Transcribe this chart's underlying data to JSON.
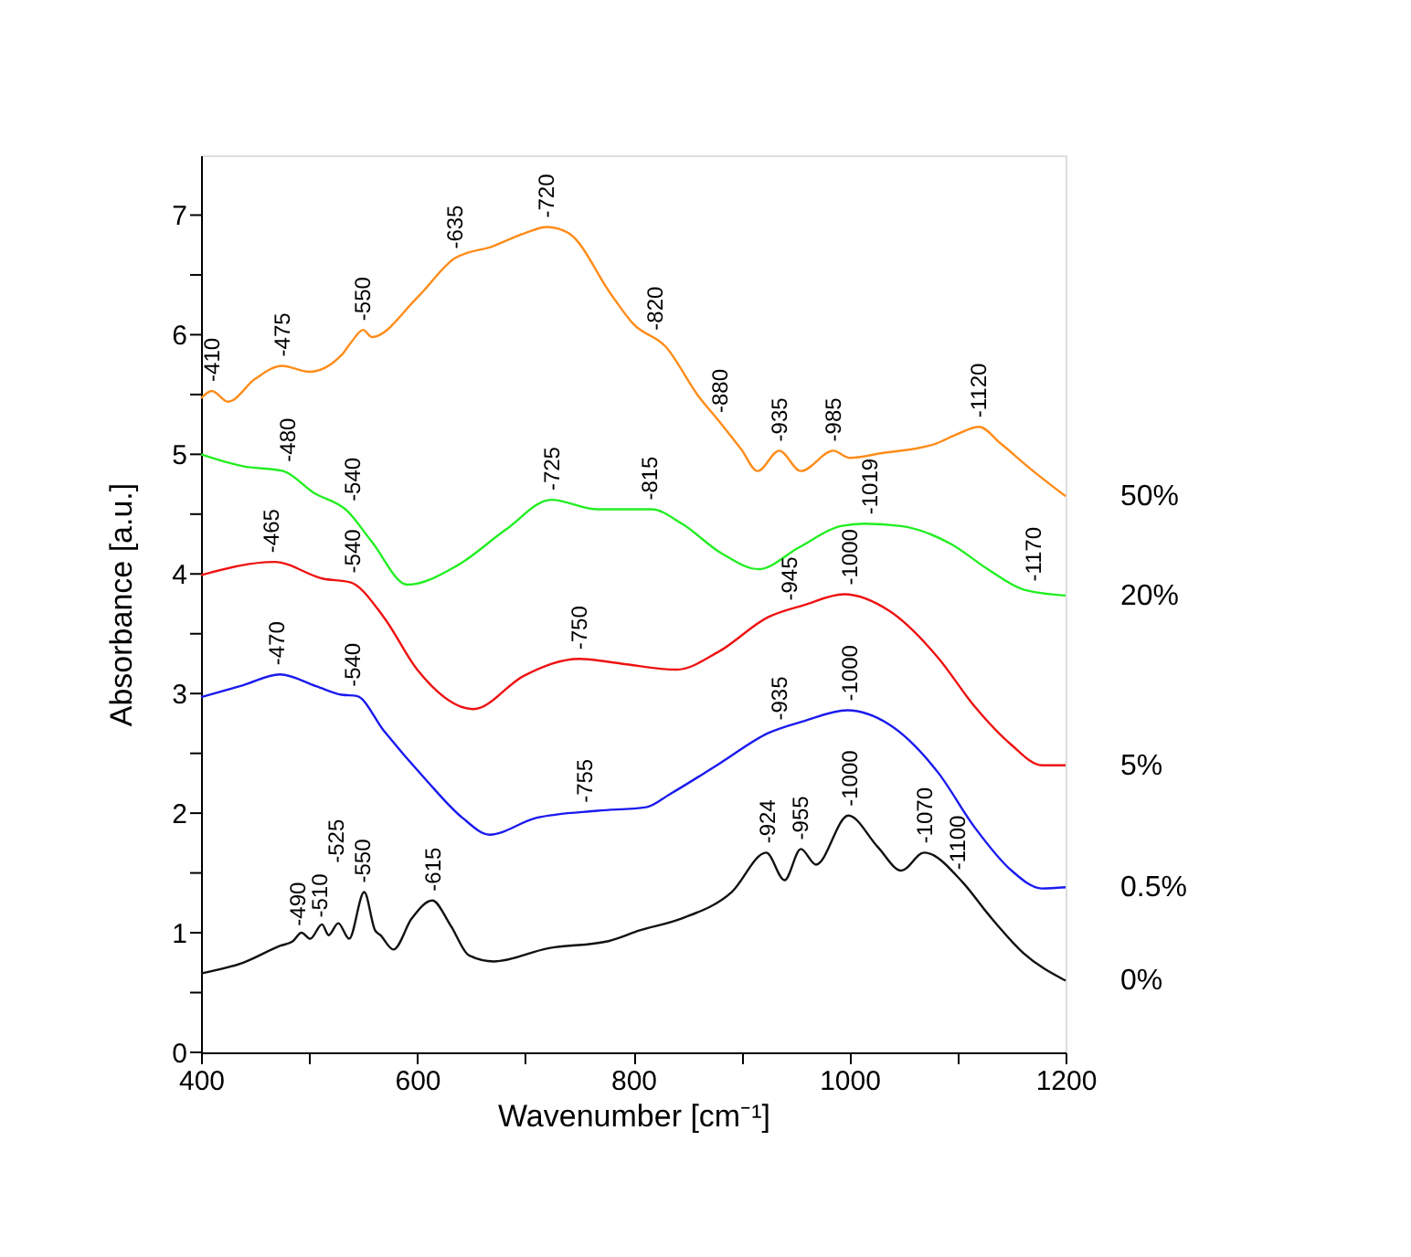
{
  "chart_data": {
    "type": "line",
    "xlabel": "Wavenumber [cm⁻¹]",
    "ylabel": "Absorbance [a.u.]",
    "xlim": [
      400,
      1200
    ],
    "ylim": [
      0,
      7.5
    ],
    "xticks": [
      400,
      {
        "value": 500,
        "label": null
      },
      600,
      {
        "value": 700,
        "label": null
      },
      800,
      {
        "value": 900,
        "label": null
      },
      1000,
      {
        "value": 1100,
        "label": null
      },
      1200
    ],
    "yticks": [
      0,
      {
        "value": 0.5,
        "label": null
      },
      1,
      {
        "value": 1.5,
        "label": null
      },
      2,
      {
        "value": 2.5,
        "label": null
      },
      3,
      {
        "value": 3.5,
        "label": null
      },
      4,
      {
        "value": 4.5,
        "label": null
      },
      5,
      {
        "value": 5.5,
        "label": null
      },
      6,
      {
        "value": 6.5,
        "label": null
      },
      7
    ],
    "grid": false,
    "series": [
      {
        "name": "50%",
        "color": "#ff8c1a",
        "x": [
          400,
          410,
          425,
          450,
          475,
          500,
          530,
          540,
          550,
          558,
          600,
          635,
          670,
          700,
          720,
          740,
          780,
          800,
          830,
          860,
          880,
          900,
          915,
          935,
          955,
          985,
          1000,
          1030,
          1080,
          1100,
          1120,
          1140,
          1170,
          1200
        ],
        "values": [
          5.47,
          5.53,
          5.44,
          5.63,
          5.74,
          5.69,
          5.83,
          5.95,
          6.04,
          5.98,
          6.31,
          6.64,
          6.74,
          6.85,
          6.9,
          6.85,
          6.33,
          6.09,
          5.9,
          5.49,
          5.27,
          5.04,
          4.86,
          5.03,
          4.86,
          5.03,
          4.97,
          5.01,
          5.09,
          5.17,
          5.23,
          5.09,
          4.86,
          4.65
        ]
      },
      {
        "name": "20%",
        "color": "#22ee22",
        "x": [
          400,
          439,
          476,
          504,
          535,
          558,
          591,
          637,
          682,
          724,
          767,
          817,
          845,
          882,
          916,
          953,
          992,
          1014,
          1048,
          1094,
          1128,
          1161,
          1200
        ],
        "values": [
          5.0,
          4.9,
          4.86,
          4.68,
          4.53,
          4.27,
          3.91,
          4.07,
          4.37,
          4.62,
          4.54,
          4.54,
          4.42,
          4.17,
          4.04,
          4.22,
          4.4,
          4.42,
          4.4,
          4.25,
          4.04,
          3.87,
          3.82
        ]
      },
      {
        "name": "5%",
        "color": "#ee1111",
        "x": [
          400,
          468,
          513,
          538,
          569,
          600,
          652,
          699,
          750,
          789,
          840,
          879,
          925,
          958,
          995,
          1037,
          1082,
          1116,
          1150,
          1178,
          1200
        ],
        "values": [
          3.99,
          4.1,
          3.96,
          3.93,
          3.64,
          3.2,
          2.87,
          3.15,
          3.29,
          3.25,
          3.2,
          3.35,
          3.64,
          3.74,
          3.83,
          3.69,
          3.3,
          2.89,
          2.57,
          2.4,
          2.4
        ]
      },
      {
        "name": "0.5%",
        "color": "#1a1aee",
        "x": [
          400,
          439,
          473,
          507,
          530,
          544,
          569,
          608,
          642,
          667,
          710,
          767,
          812,
          834,
          879,
          925,
          958,
          998,
          1037,
          1082,
          1116,
          1150,
          1178,
          1200
        ],
        "values": [
          2.97,
          3.07,
          3.16,
          3.06,
          2.99,
          2.98,
          2.69,
          2.28,
          1.96,
          1.82,
          1.96,
          2.02,
          2.05,
          2.16,
          2.41,
          2.67,
          2.77,
          2.86,
          2.74,
          2.34,
          1.88,
          1.52,
          1.37,
          1.38
        ]
      },
      {
        "name": "0%",
        "color": "#111111",
        "x": [
          400,
          439,
          473,
          485,
          493,
          501,
          512,
          518,
          527,
          537,
          551,
          561,
          566,
          578,
          595,
          614,
          631,
          648,
          671,
          721,
          777,
          806,
          845,
          891,
          923,
          940,
          955,
          969,
          999,
          1026,
          1048,
          1069,
          1105,
          1128,
          1161,
          1200
        ],
        "values": [
          0.66,
          0.75,
          0.89,
          0.93,
          1.0,
          0.95,
          1.07,
          0.98,
          1.08,
          0.95,
          1.34,
          1.02,
          0.98,
          0.86,
          1.12,
          1.27,
          1.06,
          0.81,
          0.76,
          0.87,
          0.93,
          1.02,
          1.12,
          1.34,
          1.67,
          1.44,
          1.7,
          1.57,
          1.98,
          1.72,
          1.52,
          1.67,
          1.42,
          1.16,
          0.83,
          0.6
        ]
      }
    ],
    "annotations": [
      {
        "text": "-410",
        "x": 410,
        "y": 5.53
      },
      {
        "text": "-475",
        "x": 475,
        "y": 5.74
      },
      {
        "text": "-550",
        "x": 550,
        "y": 6.04
      },
      {
        "text": "-635",
        "x": 635,
        "y": 6.64
      },
      {
        "text": "-720",
        "x": 720,
        "y": 6.9
      },
      {
        "text": "-820",
        "x": 820,
        "y": 5.96
      },
      {
        "text": "-880",
        "x": 880,
        "y": 5.27
      },
      {
        "text": "-935",
        "x": 935,
        "y": 5.03
      },
      {
        "text": "-985",
        "x": 985,
        "y": 5.03
      },
      {
        "text": "-1120",
        "x": 1120,
        "y": 5.23
      },
      {
        "text": "-480",
        "x": 480,
        "y": 4.86
      },
      {
        "text": "-540",
        "x": 540,
        "y": 4.53
      },
      {
        "text": "-725",
        "x": 725,
        "y": 4.62
      },
      {
        "text": "-815",
        "x": 815,
        "y": 4.54
      },
      {
        "text": "-1019",
        "x": 1019,
        "y": 4.42
      },
      {
        "text": "-1170",
        "x": 1170,
        "y": 3.86
      },
      {
        "text": "-465",
        "x": 465,
        "y": 4.1
      },
      {
        "text": "-540",
        "x": 540,
        "y": 3.93
      },
      {
        "text": "-750",
        "x": 750,
        "y": 3.29
      },
      {
        "text": "-945",
        "x": 945,
        "y": 3.7
      },
      {
        "text": "-1000",
        "x": 1000,
        "y": 3.83
      },
      {
        "text": "-470",
        "x": 470,
        "y": 3.16
      },
      {
        "text": "-540",
        "x": 540,
        "y": 2.98
      },
      {
        "text": "-755",
        "x": 755,
        "y": 2.01
      },
      {
        "text": "-935",
        "x": 935,
        "y": 2.7
      },
      {
        "text": "-1000",
        "x": 1000,
        "y": 2.86
      },
      {
        "text": "-490",
        "x": 490,
        "y": 0.98
      },
      {
        "text": "-510",
        "x": 510,
        "y": 1.05
      },
      {
        "text": "-525",
        "x": 525,
        "y": 1.08
      },
      {
        "text": "-550",
        "x": 550,
        "y": 1.34
      },
      {
        "text": "-615",
        "x": 615,
        "y": 1.27
      },
      {
        "text": "-924",
        "x": 924,
        "y": 1.67
      },
      {
        "text": "-955",
        "x": 955,
        "y": 1.7
      },
      {
        "text": "-1000",
        "x": 1000,
        "y": 1.98
      },
      {
        "text": "-1070",
        "x": 1070,
        "y": 1.67
      },
      {
        "text": "-1100",
        "x": 1100,
        "y": 1.45
      }
    ]
  }
}
